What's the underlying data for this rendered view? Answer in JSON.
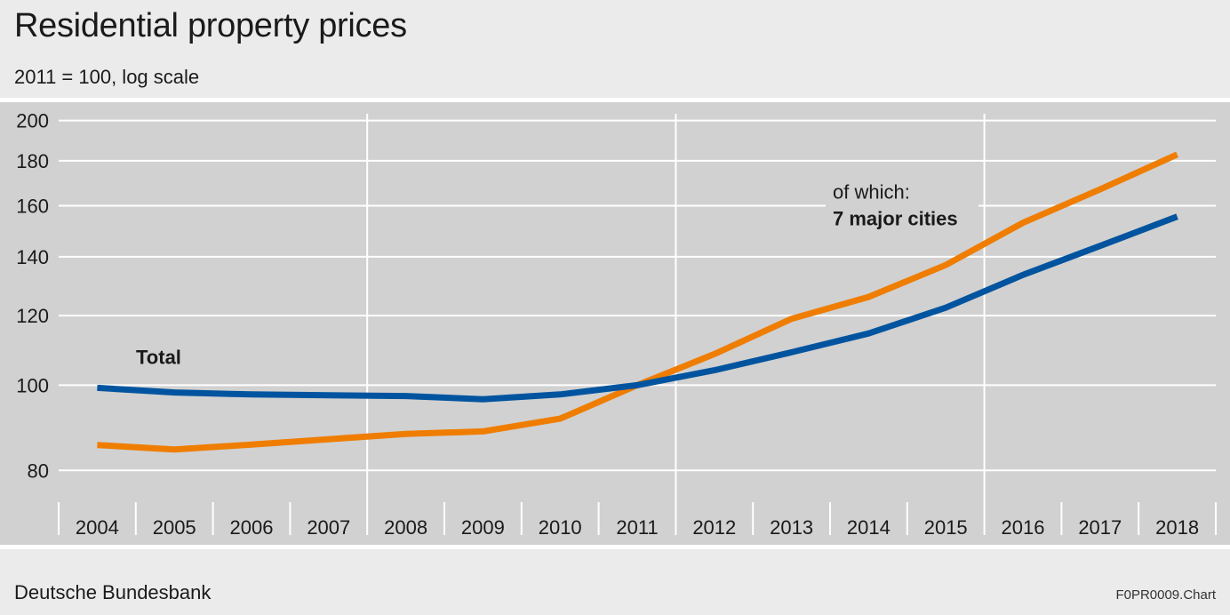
{
  "header": {
    "title": "Residential property prices",
    "subtitle": "2011 = 100, log scale"
  },
  "footer": {
    "source": "Deutsche Bundesbank",
    "chart_id": "F0PR0009.Chart"
  },
  "chart_data": {
    "type": "line",
    "title": "Residential property prices",
    "subtitle": "2011 = 100, log scale",
    "yscale": "log",
    "ylim": [
      75,
      205
    ],
    "yticks": [
      80,
      100,
      120,
      140,
      160,
      180,
      200
    ],
    "categories": [
      "2004",
      "2005",
      "2006",
      "2007",
      "2008",
      "2009",
      "2010",
      "2011",
      "2012",
      "2013",
      "2014",
      "2015",
      "2016",
      "2017",
      "2018"
    ],
    "vertical_gridlines_after": [
      "2007",
      "2011",
      "2015"
    ],
    "grid": true,
    "colors": {
      "total": "#00549f",
      "major_cities": "#ef7d00",
      "gridline": "#ffffff",
      "plot_bg": "#d1d1d1"
    },
    "series": [
      {
        "name": "Total",
        "color": "#00549f",
        "values": [
          99.3,
          98.1,
          97.6,
          97.4,
          97.2,
          96.4,
          97.6,
          100.0,
          104.0,
          109.0,
          114.5,
          122.5,
          133.5,
          144.0,
          155.5
        ]
      },
      {
        "name": "7 major cities",
        "label_prefix": "of which:",
        "color": "#ef7d00",
        "values": [
          85.5,
          84.5,
          85.6,
          86.8,
          88.0,
          88.6,
          91.6,
          100.0,
          108.5,
          119.0,
          126.0,
          137.0,
          153.0,
          167.0,
          183.0
        ]
      }
    ],
    "annotations": [
      {
        "text": "Total",
        "bold": true,
        "series": "Total"
      },
      {
        "text": "of which:",
        "bold": false,
        "series": "7 major cities"
      },
      {
        "text": "7 major cities",
        "bold": true,
        "series": "7 major cities"
      }
    ]
  }
}
